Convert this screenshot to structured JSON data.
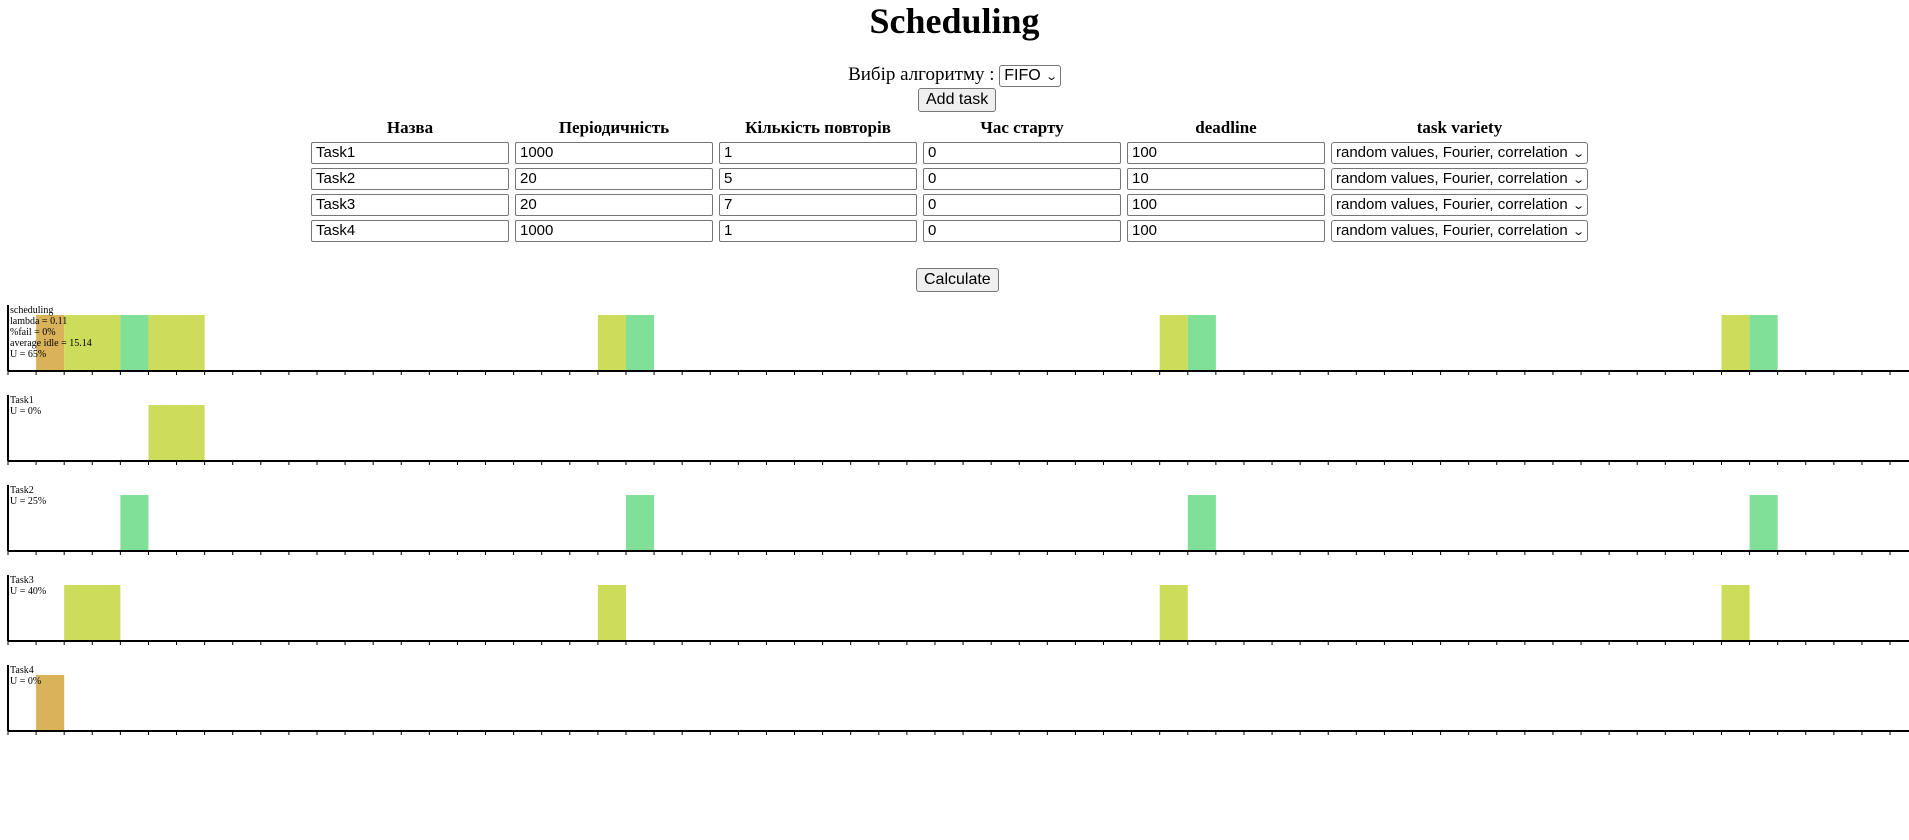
{
  "title": "Scheduling",
  "algorithm": {
    "label": "Вибір алгоритму :",
    "selected": "FIFO"
  },
  "add_task_label": "Add task",
  "calculate_label": "Calculate",
  "table": {
    "headers": [
      "Назва",
      "Періодичність",
      "Кількість повторів",
      "Час старту",
      "deadline",
      "task variety"
    ],
    "rows": [
      {
        "name": "Task1",
        "period": "1000",
        "repeats": "1",
        "start": "0",
        "deadline": "100",
        "variety": "random values, Fourier, correlation"
      },
      {
        "name": "Task2",
        "period": "20",
        "repeats": "5",
        "start": "0",
        "deadline": "10",
        "variety": "random values, Fourier, correlation"
      },
      {
        "name": "Task3",
        "period": "20",
        "repeats": "7",
        "start": "0",
        "deadline": "100",
        "variety": "random values, Fourier, correlation"
      },
      {
        "name": "Task4",
        "period": "1000",
        "repeats": "1",
        "start": "0",
        "deadline": "100",
        "variety": "random values, Fourier, correlation"
      }
    ]
  },
  "colors": {
    "task1": "#cddc5a",
    "task2": "#80e098",
    "task3": "#cddc5a",
    "task4": "#d9b25a"
  },
  "chart_data": [
    {
      "type": "gantt",
      "labels": [
        "scheduling",
        "lambda = 0.11",
        "%fail = 0%",
        "average idle = 15.14",
        "U = 65%"
      ],
      "x_ticks": {
        "min": 0,
        "max": 67,
        "step": 1
      },
      "segments": [
        {
          "task": "task4",
          "start": 1,
          "end": 2
        },
        {
          "task": "task3",
          "start": 2,
          "end": 4
        },
        {
          "task": "task2",
          "start": 4,
          "end": 5
        },
        {
          "task": "task1",
          "start": 5,
          "end": 7
        },
        {
          "task": "task3",
          "start": 21,
          "end": 22
        },
        {
          "task": "task2",
          "start": 22,
          "end": 23
        },
        {
          "task": "task3",
          "start": 41,
          "end": 42
        },
        {
          "task": "task2",
          "start": 42,
          "end": 43
        },
        {
          "task": "task3",
          "start": 61,
          "end": 62
        },
        {
          "task": "task2",
          "start": 62,
          "end": 63
        }
      ]
    },
    {
      "type": "gantt",
      "labels": [
        "Task1",
        "U = 0%"
      ],
      "x_ticks": {
        "min": 0,
        "max": 67,
        "step": 1
      },
      "segments": [
        {
          "task": "task1",
          "start": 5,
          "end": 7
        }
      ]
    },
    {
      "type": "gantt",
      "labels": [
        "Task2",
        "U = 25%"
      ],
      "x_ticks": {
        "min": 0,
        "max": 67,
        "step": 1
      },
      "segments": [
        {
          "task": "task2",
          "start": 4,
          "end": 5
        },
        {
          "task": "task2",
          "start": 22,
          "end": 23
        },
        {
          "task": "task2",
          "start": 42,
          "end": 43
        },
        {
          "task": "task2",
          "start": 62,
          "end": 63
        }
      ]
    },
    {
      "type": "gantt",
      "labels": [
        "Task3",
        "U = 40%"
      ],
      "x_ticks": {
        "min": 0,
        "max": 67,
        "step": 1
      },
      "segments": [
        {
          "task": "task3",
          "start": 2,
          "end": 4
        },
        {
          "task": "task3",
          "start": 21,
          "end": 22
        },
        {
          "task": "task3",
          "start": 41,
          "end": 42
        },
        {
          "task": "task3",
          "start": 61,
          "end": 62
        }
      ]
    },
    {
      "type": "gantt",
      "labels": [
        "Task4",
        "U = 0%"
      ],
      "x_ticks": {
        "min": 0,
        "max": 67,
        "step": 1
      },
      "segments": [
        {
          "task": "task4",
          "start": 1,
          "end": 2
        }
      ]
    }
  ]
}
